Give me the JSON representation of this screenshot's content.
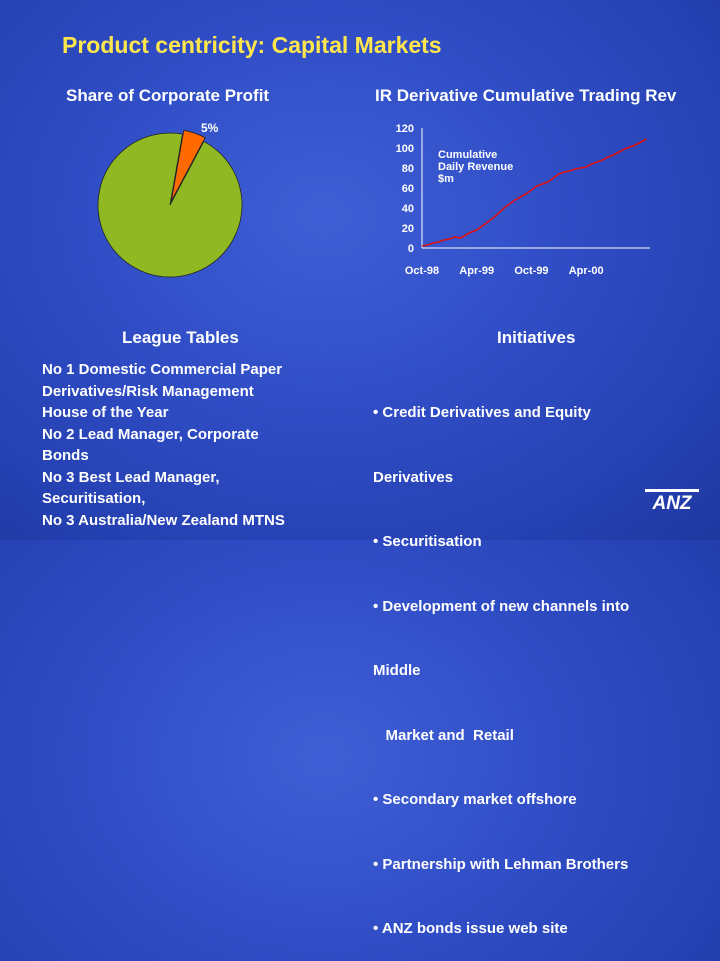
{
  "slide": {
    "title": "Product centricity: Capital Markets"
  },
  "pie_section": {
    "heading": "Share of Corporate Profit"
  },
  "line_section": {
    "heading": "IR Derivative Cumulative Trading Rev",
    "legend_lines": [
      "Cumulative",
      "Daily Revenue",
      "$m"
    ]
  },
  "league_tables": {
    "heading": "League Tables",
    "lines": [
      "No 1 Domestic Commercial Paper",
      "Derivatives/Risk Management",
      "House of the Year",
      "No 2 Lead Manager, Corporate",
      "Bonds",
      "No 3 Best Lead Manager,",
      "Securitisation,",
      "No 3 Australia/New Zealand MTNS"
    ]
  },
  "initiatives": {
    "heading": "Initiatives",
    "lines": [
      "• Credit Derivatives and Equity",
      "Derivatives",
      "• Securitisation",
      "• Development of new channels into",
      "Middle",
      "   Market and  Retail",
      "• Secondary market offshore",
      "• Partnership with Lehman Brothers",
      "• ANZ bonds issue web site"
    ]
  },
  "logo": {
    "text": "ANZ",
    "icon": "anz-logo-icon",
    "color": "#ffffff"
  },
  "chart_data": [
    {
      "type": "pie",
      "labels": [
        "5%",
        ""
      ],
      "values": [
        5,
        95
      ],
      "colors": [
        "#ff6a00",
        "#8fb823"
      ],
      "start_angle_deg": 10
    },
    {
      "type": "line",
      "color": "#dd1111",
      "y_ticks": [
        "120",
        "100",
        "80",
        "60",
        "40",
        "20",
        "0"
      ],
      "ylim": [
        0,
        120
      ],
      "x_ticks": [
        "Oct-98",
        "Apr-99",
        "Oct-99",
        "Apr-00"
      ],
      "x": [
        0,
        0.6,
        1.2,
        1.8,
        2.4,
        3.0,
        3.6,
        4.2,
        4.8,
        5.4,
        6.0,
        6.6,
        7.2,
        7.8,
        8.4,
        9.0,
        9.6,
        10.2,
        10.8,
        11.4,
        12.0,
        12.6,
        13.2,
        13.8,
        14.4,
        15.0,
        15.6,
        16.2,
        16.8,
        17.4,
        18.0,
        18.6,
        19.2,
        19.8,
        20.4,
        21.0,
        21.6,
        22.2,
        22.8,
        23.4,
        24.0,
        24.6
      ],
      "y": [
        2,
        3,
        5,
        6,
        8,
        9,
        11,
        10,
        13,
        16,
        18,
        22,
        26,
        30,
        35,
        40,
        44,
        48,
        51,
        54,
        58,
        62,
        64,
        66,
        70,
        74,
        76,
        77,
        79,
        80,
        81,
        84,
        86,
        88,
        91,
        93,
        96,
        99,
        101,
        103,
        106,
        109
      ]
    }
  ]
}
